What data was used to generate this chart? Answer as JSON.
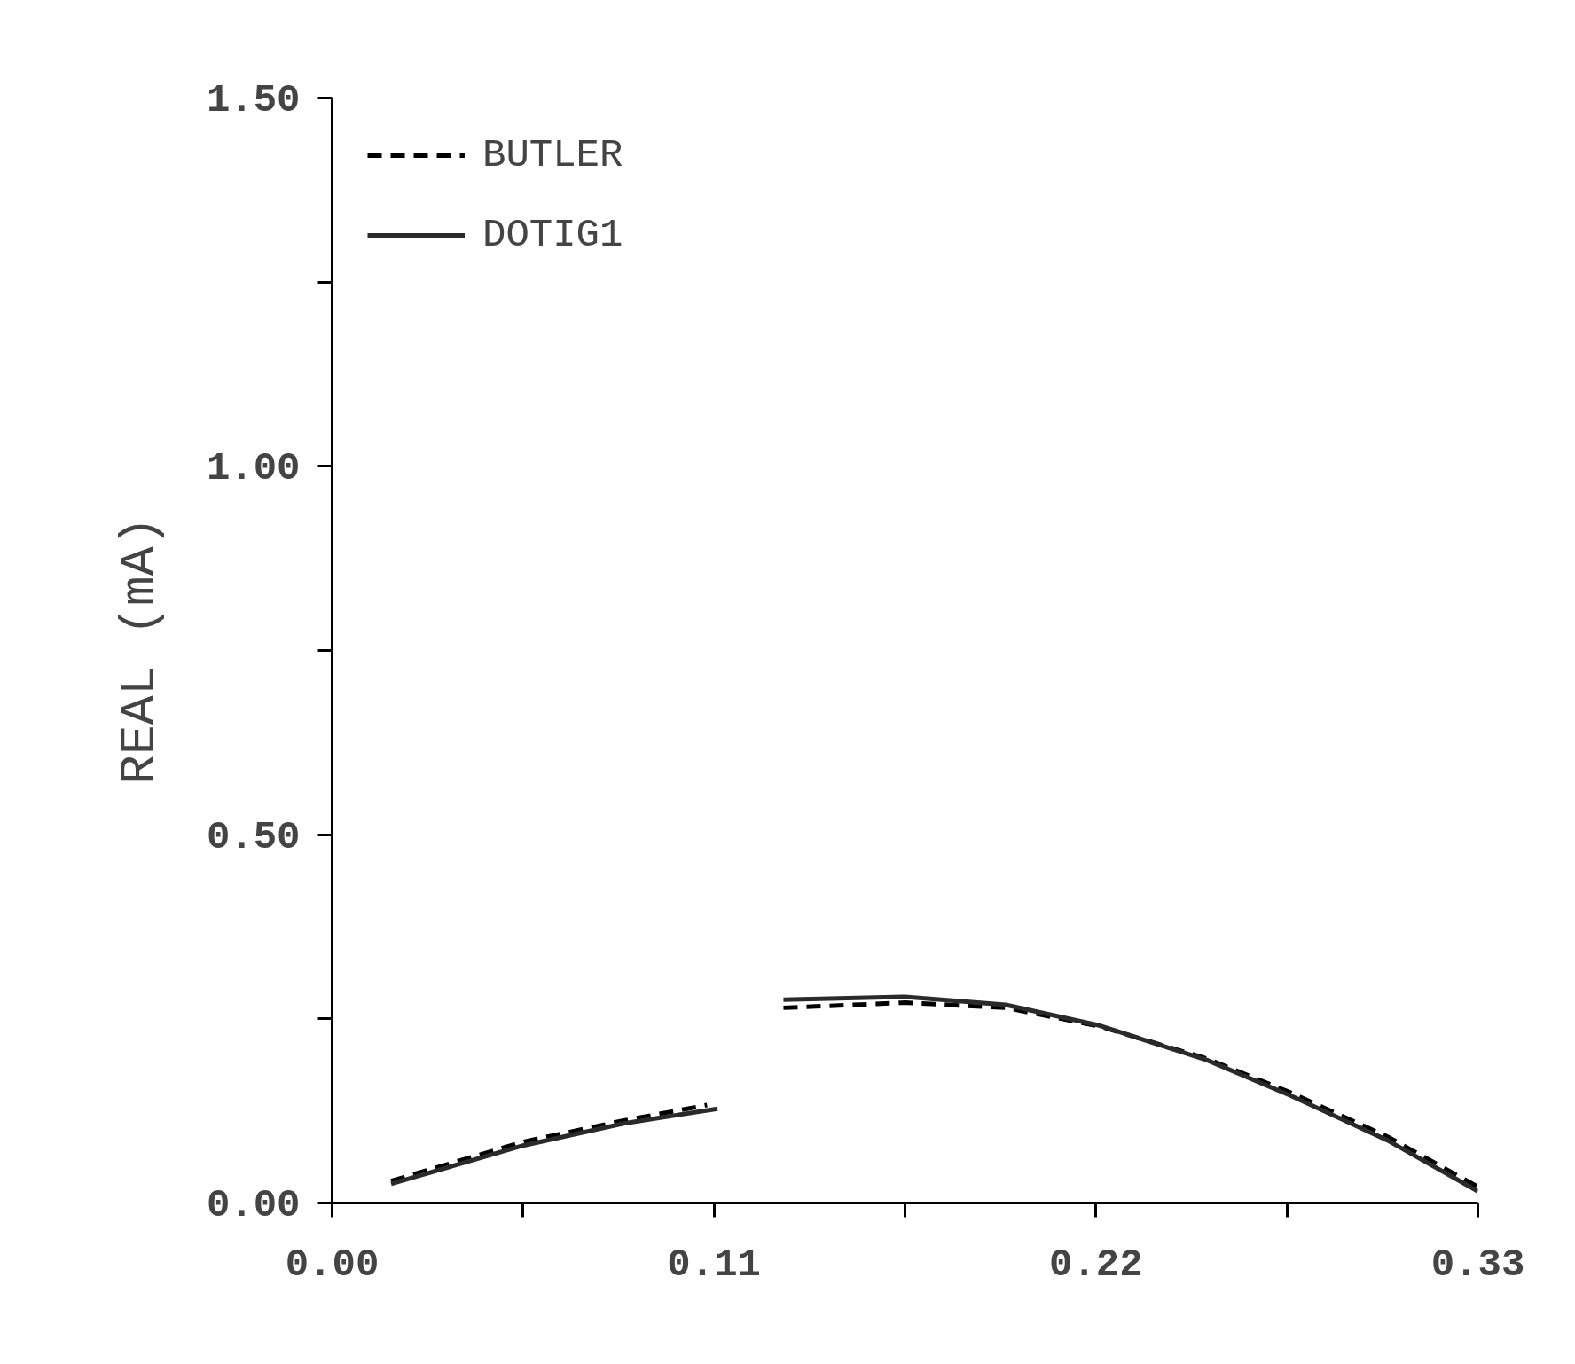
{
  "chart_data": {
    "type": "line",
    "ylabel": "REAL (mA)",
    "xlim": [
      0,
      0.33
    ],
    "ylim": [
      0,
      1.5
    ],
    "xticks": [
      {
        "value": 0,
        "label": "0.00"
      },
      {
        "value": 0.055,
        "label": null
      },
      {
        "value": 0.11,
        "label": "0.11"
      },
      {
        "value": 0.165,
        "label": null
      },
      {
        "value": 0.22,
        "label": "0.22"
      },
      {
        "value": 0.275,
        "label": null
      },
      {
        "value": 0.33,
        "label": "0.33"
      }
    ],
    "yticks": [
      {
        "value": 0,
        "label": "0.00"
      },
      {
        "value": 0.25,
        "label": null
      },
      {
        "value": 0.5,
        "label": "0.50"
      },
      {
        "value": 0.75,
        "label": null
      },
      {
        "value": 1.0,
        "label": "1.00"
      },
      {
        "value": 1.25,
        "label": null
      },
      {
        "value": 1.5,
        "label": "1.50"
      }
    ],
    "grid": false,
    "legend": "top left",
    "series": [
      {
        "name": "BUTLER",
        "color": "#000000",
        "line_style": "dashed",
        "x": [
          0.017,
          0.055,
          0.084,
          0.108,
          0.12,
          0.13,
          0.165,
          0.194,
          0.221,
          0.252,
          0.276,
          0.304,
          0.33
        ],
        "values": [
          0.03,
          0.083,
          0.112,
          0.133,
          null,
          0.265,
          0.272,
          0.265,
          0.24,
          0.196,
          0.15,
          0.09,
          0.022
        ]
      },
      {
        "name": "DOTIG1",
        "color": "#2a2a2a",
        "line_style": "solid",
        "x": [
          0.017,
          0.055,
          0.084,
          0.111,
          0.12,
          0.13,
          0.165,
          0.194,
          0.221,
          0.252,
          0.276,
          0.304,
          0.33
        ],
        "values": [
          0.026,
          0.078,
          0.108,
          0.128,
          null,
          0.276,
          0.28,
          0.269,
          0.241,
          0.194,
          0.146,
          0.085,
          0.016
        ]
      }
    ]
  }
}
